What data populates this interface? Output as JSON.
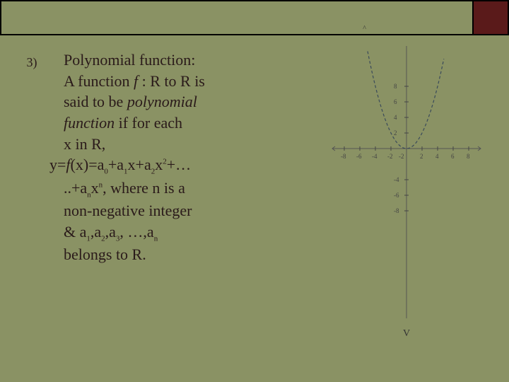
{
  "slide": {
    "number": "3)",
    "title_caret": "^",
    "lines": {
      "l1": "Polynomial function:",
      "l2a": "A function ",
      "l2b": "f ",
      "l2c": ": R to R is",
      "l3a": "said to be ",
      "l3b": "polynomial",
      "l4a": "function",
      "l4b": " if for each",
      "l5": "x  in R,",
      "l6a": "y=",
      "l6b": "f",
      "l6c": "(x)=a",
      "l6d": "0",
      "l6e": "+a",
      "l6f": "1",
      "l6g": "x+a",
      "l6h": "2",
      "l6i": "x",
      "l6j": "2",
      "l6k": "+…",
      "l7a": "..+a",
      "l7b": "n",
      "l7c": "x",
      "l7d": "n",
      "l7e": ", where n is a",
      "l8": "non-negative integer",
      "l9a": "& a",
      "l9b": "1",
      "l9c": ",a",
      "l9d": "2",
      "l9e": ",a",
      "l9f": "3",
      "l9g": ", …,a",
      "l9h": "n",
      "l10": "belongs to R."
    }
  },
  "graph": {
    "type": "parabola",
    "background_color": "#8a9264",
    "axis_color": "#555555",
    "curve_color": "#3a4a5a",
    "tick_color": "#444444",
    "tick_fontsize": 9,
    "y_ticks_pos": [
      "8",
      "6",
      "4",
      "2"
    ],
    "y_ticks_neg": [
      "-4",
      "-6",
      "-8"
    ],
    "x_ticks_neg": [
      "-8",
      "-6",
      "-4",
      "-2"
    ],
    "x_ticks_pos": [
      "2",
      "4",
      "6",
      "8"
    ],
    "x_axis_zero": "-2",
    "bottom_label": "V",
    "ylim": [
      -8,
      8
    ],
    "xlim": [
      -8,
      8
    ],
    "vertex": [
      0,
      0
    ],
    "opens": "up",
    "line_width": 1.2
  }
}
